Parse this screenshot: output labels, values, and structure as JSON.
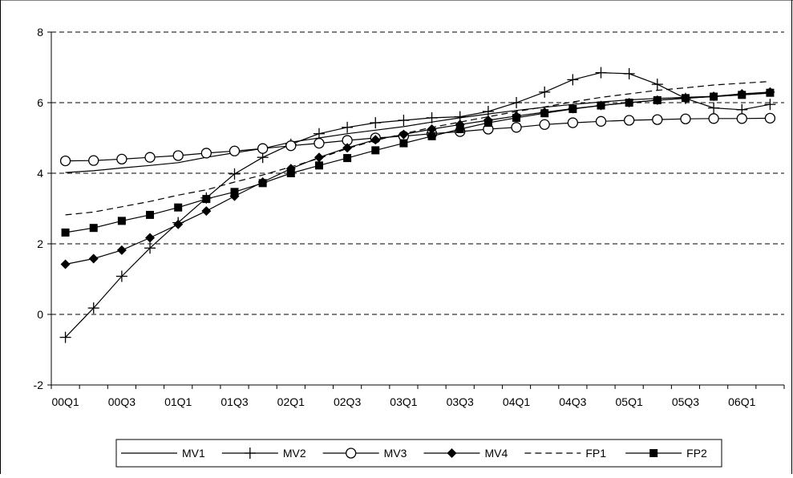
{
  "chart_data": {
    "type": "line",
    "title": "",
    "xlabel": "",
    "ylabel": "",
    "ylim": [
      -2,
      8
    ],
    "yticks": [
      -2,
      0,
      2,
      4,
      6,
      8
    ],
    "grid": "horizontal dashed",
    "legend_position": "bottom",
    "x": [
      "00Q1",
      "00Q2",
      "00Q3",
      "00Q4",
      "01Q1",
      "01Q2",
      "01Q3",
      "01Q4",
      "02Q1",
      "02Q2",
      "02Q3",
      "02Q4",
      "03Q1",
      "03Q2",
      "03Q3",
      "03Q4",
      "04Q1",
      "04Q2",
      "04Q3",
      "04Q4",
      "05Q1",
      "05Q2",
      "05Q3",
      "05Q4",
      "06Q1",
      "06Q2"
    ],
    "xtick_labels": [
      "00Q1",
      "00Q3",
      "01Q1",
      "01Q3",
      "02Q1",
      "02Q3",
      "03Q1",
      "03Q3",
      "04Q1",
      "04Q3",
      "05Q1",
      "05Q3",
      "06Q1"
    ],
    "series": [
      {
        "name": "MV1",
        "marker": "none",
        "dash": "solid",
        "values": [
          4.02,
          4.07,
          4.15,
          4.22,
          4.3,
          4.45,
          4.58,
          4.7,
          4.88,
          5.0,
          5.12,
          5.22,
          5.32,
          5.45,
          5.57,
          5.68,
          5.78,
          5.87,
          5.95,
          6.02,
          6.08,
          6.12,
          6.15,
          6.18,
          6.22,
          6.27
        ]
      },
      {
        "name": "MV2",
        "marker": "plus",
        "dash": "solid",
        "values": [
          -0.65,
          0.18,
          1.08,
          1.88,
          2.6,
          3.3,
          3.98,
          4.45,
          4.82,
          5.12,
          5.3,
          5.43,
          5.5,
          5.57,
          5.6,
          5.75,
          6.0,
          6.3,
          6.65,
          6.85,
          6.82,
          6.52,
          6.12,
          5.85,
          5.8,
          5.95
        ]
      },
      {
        "name": "MV3",
        "marker": "circle",
        "dash": "solid",
        "values": [
          4.35,
          4.36,
          4.4,
          4.45,
          4.5,
          4.57,
          4.63,
          4.7,
          4.78,
          4.85,
          4.93,
          5.0,
          5.05,
          5.12,
          5.18,
          5.25,
          5.3,
          5.38,
          5.43,
          5.47,
          5.5,
          5.52,
          5.54,
          5.55,
          5.55,
          5.56
        ]
      },
      {
        "name": "MV4",
        "marker": "diamond",
        "dash": "solid",
        "values": [
          1.42,
          1.58,
          1.82,
          2.17,
          2.55,
          2.93,
          3.35,
          3.75,
          4.13,
          4.45,
          4.72,
          4.95,
          5.1,
          5.25,
          5.38,
          5.5,
          5.62,
          5.73,
          5.83,
          5.92,
          6.0,
          6.07,
          6.12,
          6.18,
          6.25,
          6.3
        ]
      },
      {
        "name": "FP1",
        "marker": "none",
        "dash": "dashed",
        "values": [
          2.82,
          2.9,
          3.05,
          3.2,
          3.38,
          3.53,
          3.75,
          3.95,
          4.18,
          4.42,
          4.7,
          4.93,
          5.12,
          5.3,
          5.45,
          5.6,
          5.75,
          5.88,
          6.02,
          6.15,
          6.25,
          6.35,
          6.42,
          6.5,
          6.55,
          6.6
        ]
      },
      {
        "name": "FP2",
        "marker": "square",
        "dash": "solid",
        "values": [
          2.32,
          2.45,
          2.65,
          2.82,
          3.03,
          3.27,
          3.47,
          3.72,
          4.0,
          4.22,
          4.43,
          4.65,
          4.85,
          5.05,
          5.25,
          5.43,
          5.57,
          5.7,
          5.82,
          5.92,
          6.0,
          6.07,
          6.13,
          6.17,
          6.22,
          6.28
        ]
      }
    ]
  }
}
